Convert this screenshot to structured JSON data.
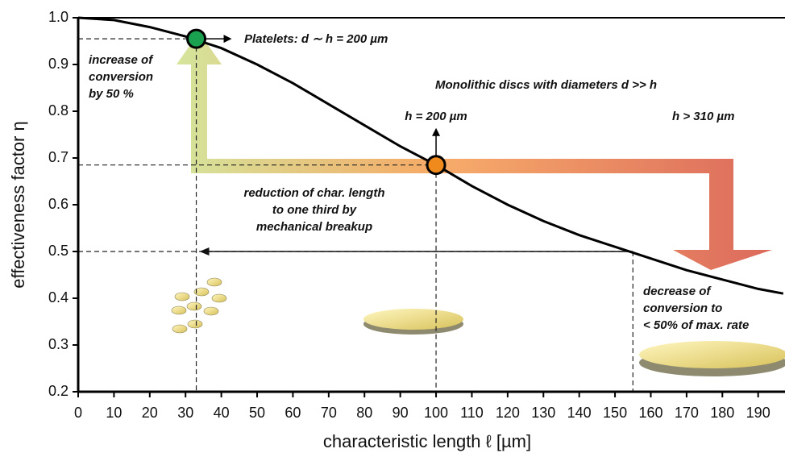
{
  "chart_data": {
    "type": "line",
    "x_label": "characteristic length ℓ [µm]",
    "y_label": "effectiveness factor η",
    "x": [
      0,
      10,
      20,
      30,
      40,
      50,
      60,
      70,
      80,
      90,
      100,
      110,
      120,
      130,
      140,
      150,
      160,
      170,
      180,
      190,
      197
    ],
    "values": [
      1.0,
      0.995,
      0.98,
      0.96,
      0.935,
      0.9,
      0.86,
      0.815,
      0.77,
      0.725,
      0.685,
      0.64,
      0.6,
      0.565,
      0.535,
      0.51,
      0.485,
      0.46,
      0.44,
      0.42,
      0.41
    ],
    "color": "#000000",
    "xlim": [
      0,
      197.5
    ],
    "ylim": [
      0.2,
      1.0
    ],
    "xticks": [
      0,
      10,
      20,
      30,
      40,
      50,
      60,
      70,
      80,
      90,
      100,
      110,
      120,
      130,
      140,
      150,
      160,
      170,
      180,
      190
    ],
    "yticks": [
      0.2,
      0.3,
      0.4,
      0.5,
      0.6,
      0.7,
      0.8,
      0.9,
      {
        "value": 1.0,
        "label": "1.0"
      }
    ],
    "markers": [
      {
        "x": 33,
        "y": 0.955,
        "color": "#1aa150"
      },
      {
        "x": 100,
        "y": 0.685,
        "color": "#f08a1c"
      }
    ],
    "reference_lines": [
      {
        "x": 33,
        "y": 0.955
      },
      {
        "x": 100,
        "y": 0.685
      },
      {
        "x": 155,
        "y": 0.5
      }
    ],
    "annotations": [
      [
        "Platelets: d ∼ h = 200 µm"
      ],
      [
        "increase of",
        "conversion",
        "by 50 %"
      ],
      [
        "Monolithic discs with diameters d >> h"
      ],
      [
        "h = 200 µm"
      ],
      [
        "h > 310 µm"
      ],
      [
        "reduction of char. length",
        "to one third by",
        "mechanical breakup"
      ],
      [
        "decrease of",
        "conversion to",
        "< 50% of max. rate"
      ]
    ]
  }
}
